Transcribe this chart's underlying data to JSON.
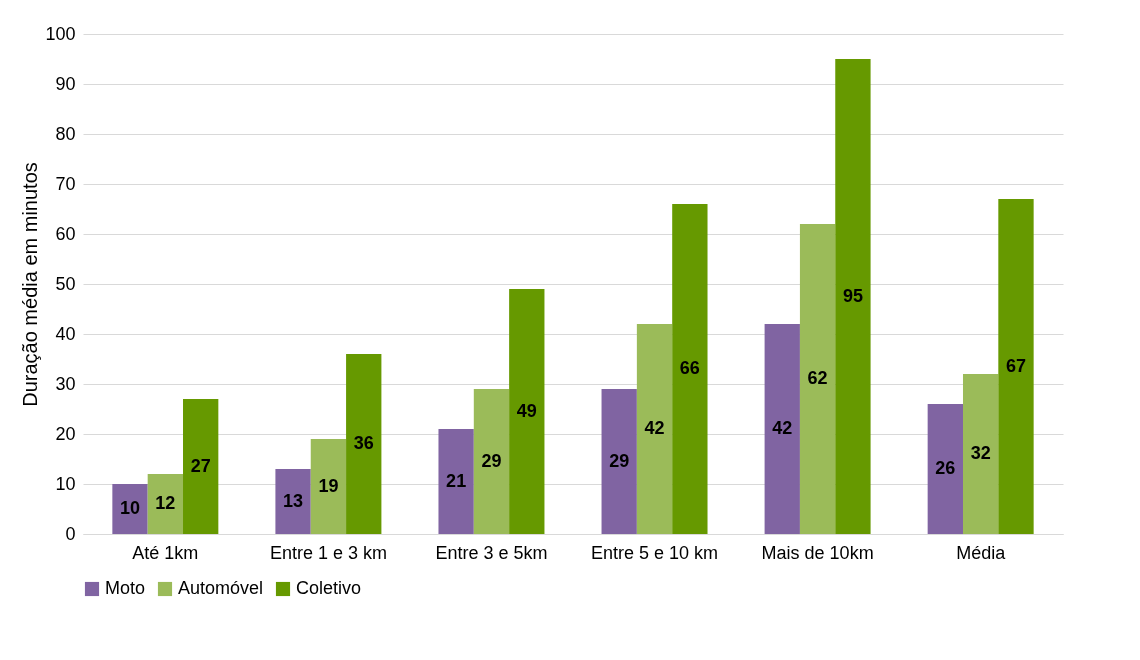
{
  "chart_data": {
    "type": "bar",
    "ylabel": "Duração média em minutos",
    "categories": [
      "Até 1km",
      "Entre 1 e 3 km",
      "Entre 3 e 5km",
      "Entre 5 e 10 km",
      "Mais de 10km",
      "Média"
    ],
    "series": [
      {
        "name": "Moto",
        "color": "#8064a2",
        "values": [
          10,
          13,
          21,
          29,
          42,
          26
        ]
      },
      {
        "name": "Automóvel",
        "color": "#9bbb59",
        "values": [
          12,
          19,
          29,
          42,
          62,
          32
        ]
      },
      {
        "name": "Coletivo",
        "color": "#669900",
        "values": [
          27,
          36,
          49,
          66,
          95,
          67
        ]
      }
    ],
    "ylim": [
      0,
      100
    ],
    "yticks": [
      0,
      10,
      20,
      30,
      40,
      50,
      60,
      70,
      80,
      90,
      100
    ],
    "grid": "y",
    "legend": "bottom",
    "data_labels": true
  }
}
